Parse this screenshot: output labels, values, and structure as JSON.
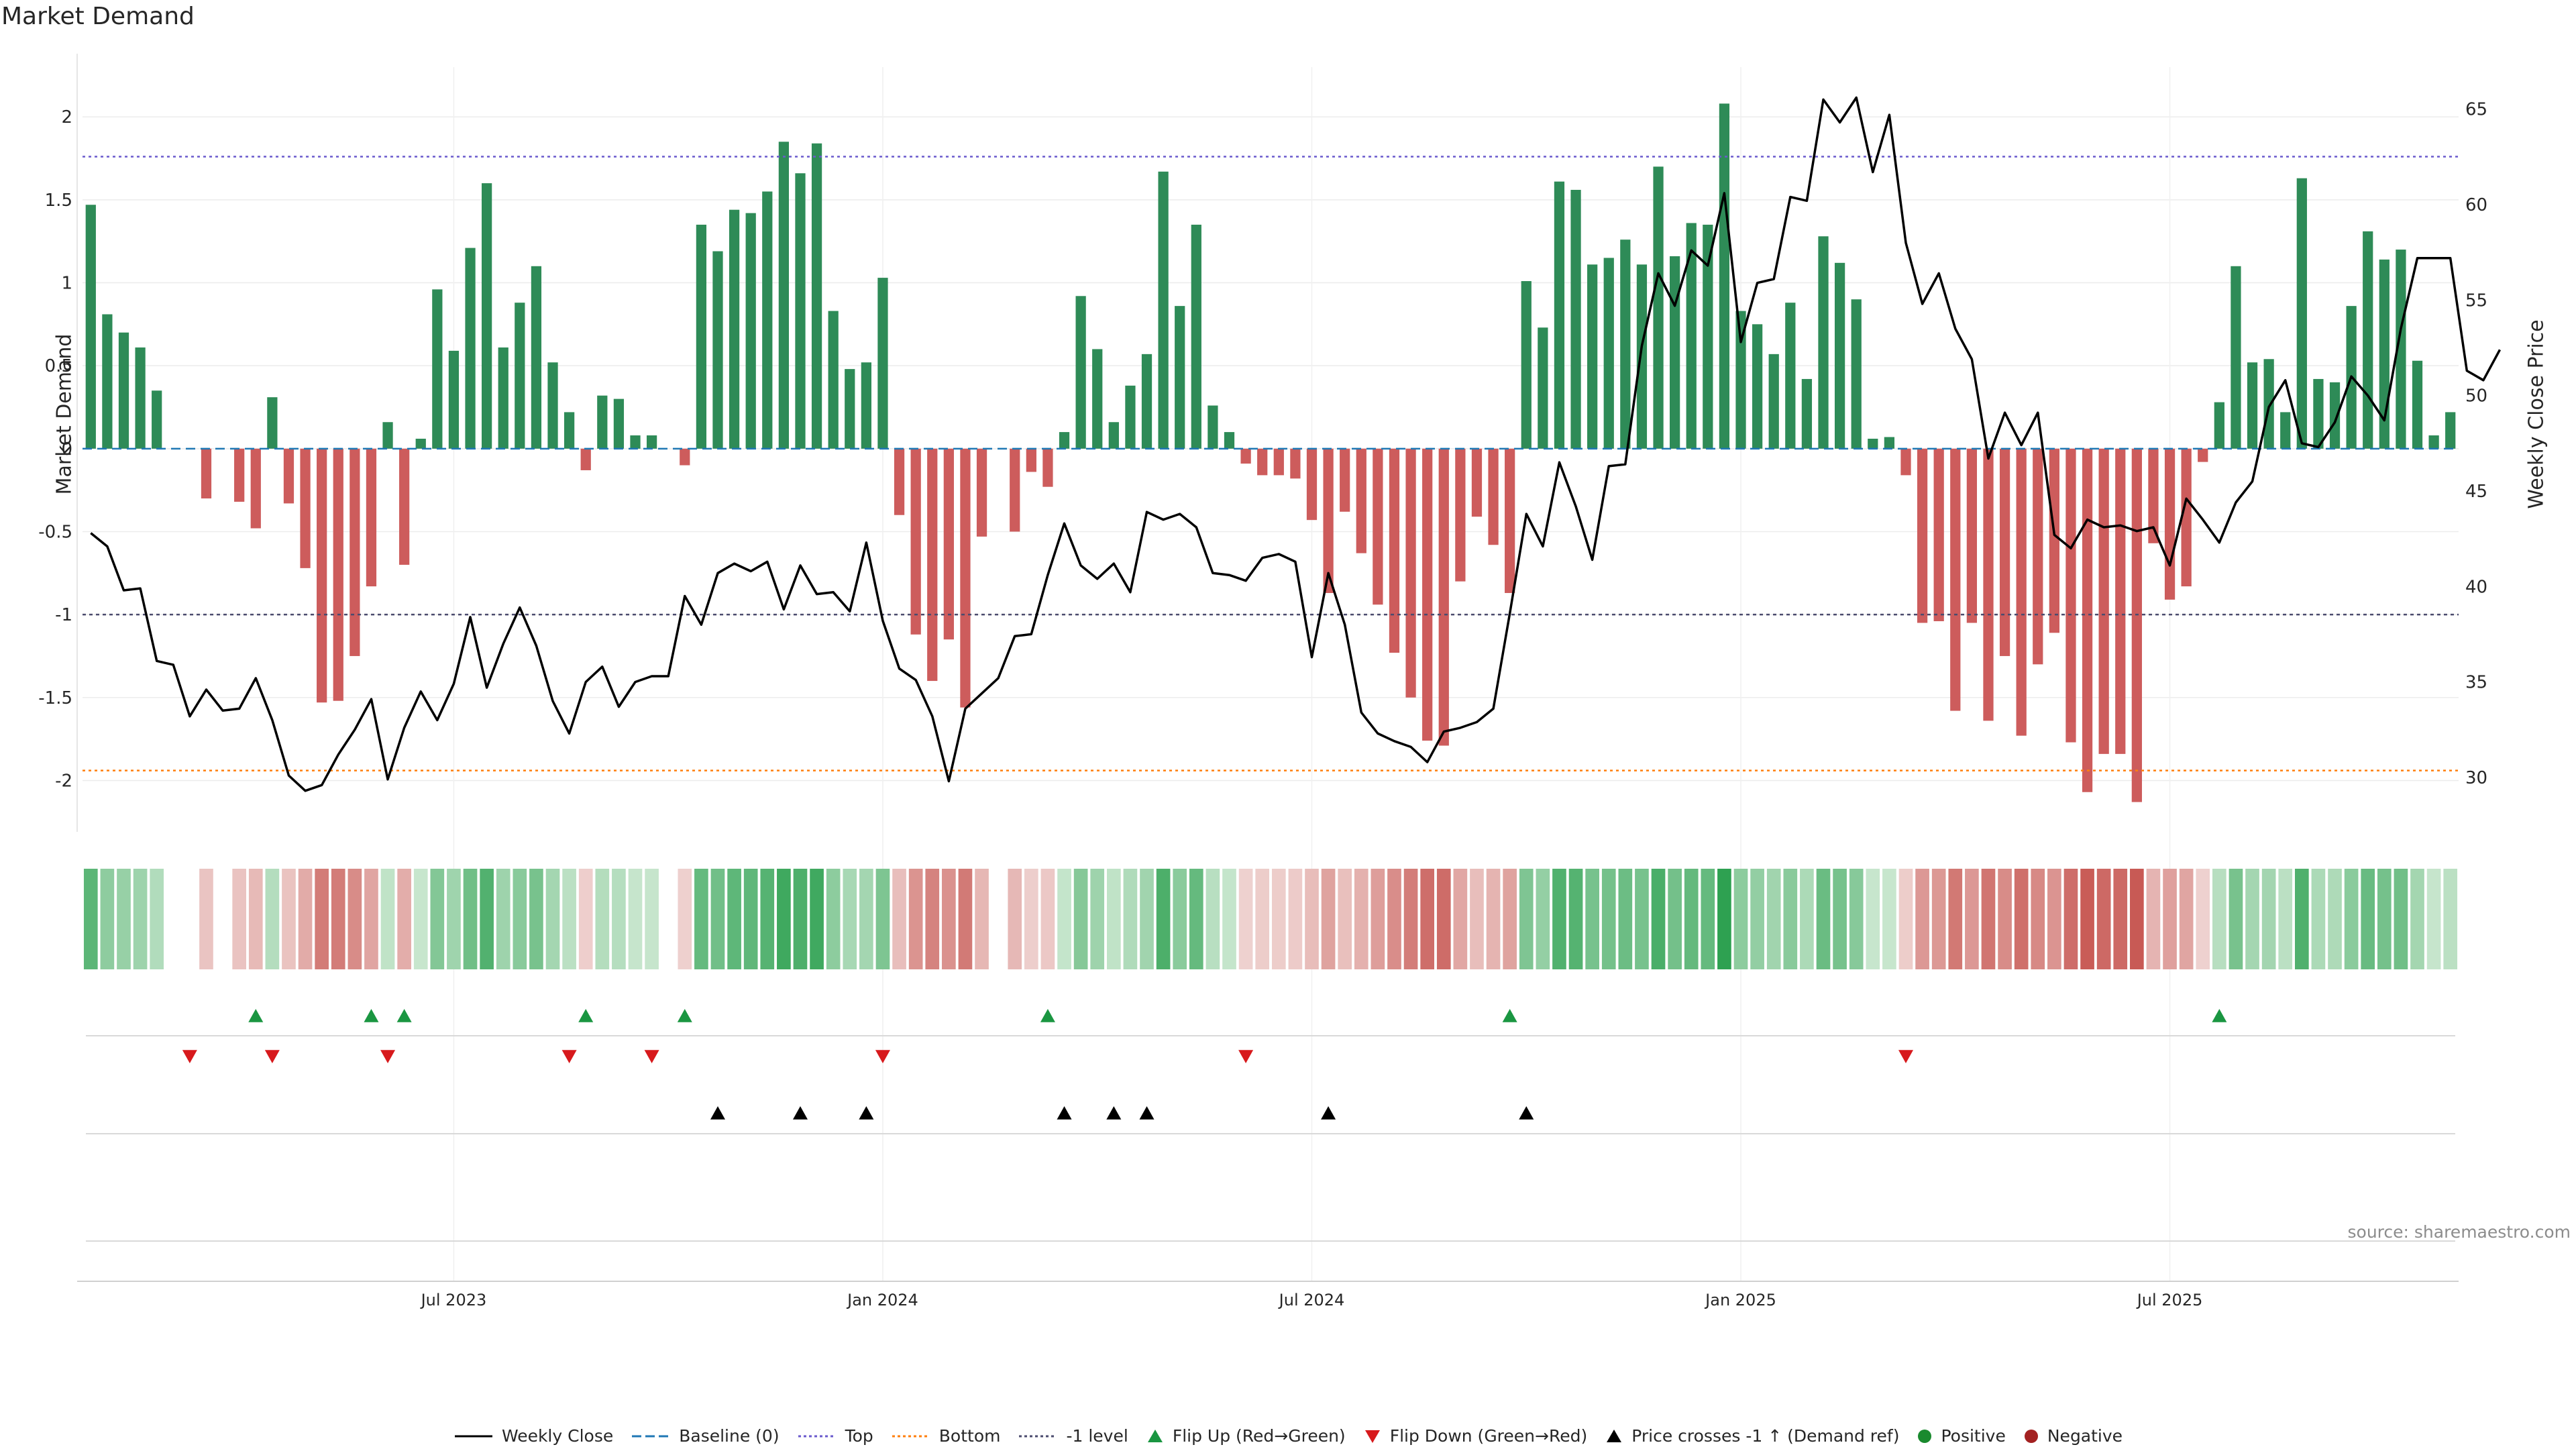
{
  "chart_data": {
    "type": "bar",
    "title": "Market Demand",
    "ylabel": "Market Demand",
    "y2label": "Weekly Close Price",
    "ylim": [
      -2.35,
      2.3
    ],
    "y2lim": [
      26.8,
      67.2
    ],
    "yticks": [
      "2",
      "1.5",
      "1",
      "0.5",
      "0",
      "-0.5",
      "-1",
      "-1.5",
      "-2"
    ],
    "yticks_values": [
      2,
      1.5,
      1,
      0.5,
      0,
      -0.5,
      -1,
      -1.5,
      -2
    ],
    "y2ticks": [
      "65",
      "60",
      "55",
      "50",
      "45",
      "40",
      "35",
      "30"
    ],
    "y2ticks_values": [
      65,
      60,
      55,
      50,
      45,
      40,
      35,
      30
    ],
    "xticks": [
      "Jul 2023",
      "Jan 2024",
      "Jul 2024",
      "Jan 2025",
      "Jul 2025"
    ],
    "xticks_week_index": [
      22,
      48,
      74,
      100,
      126
    ],
    "reference_lines": {
      "top": 1.76,
      "bottom": -1.94,
      "minus_one": -1,
      "baseline": 0
    },
    "demand": [
      1.47,
      0.81,
      0.7,
      0.61,
      0.35,
      0,
      0,
      -0.3,
      0,
      -0.32,
      -0.48,
      0.31,
      -0.33,
      -0.72,
      -1.53,
      -1.52,
      -1.25,
      -0.83,
      0.16,
      -0.7,
      0.06,
      0.96,
      0.59,
      1.21,
      1.6,
      0.61,
      0.88,
      1.1,
      0.52,
      0.22,
      -0.13,
      0.32,
      0.3,
      0.08,
      0.08,
      0,
      -0.1,
      1.35,
      1.19,
      1.44,
      1.42,
      1.55,
      1.85,
      1.66,
      1.84,
      0.83,
      0.48,
      0.52,
      1.03,
      -0.4,
      -1.12,
      -1.4,
      -1.15,
      -1.56,
      -0.53,
      0,
      -0.5,
      -0.14,
      -0.23,
      0.1,
      0.92,
      0.6,
      0.16,
      0.38,
      0.57,
      1.67,
      0.86,
      1.35,
      0.26,
      0.1,
      -0.09,
      -0.16,
      -0.16,
      -0.18,
      -0.43,
      -0.87,
      -0.38,
      -0.63,
      -0.94,
      -1.23,
      -1.5,
      -1.76,
      -1.79,
      -0.8,
      -0.41,
      -0.58,
      -0.87,
      1.01,
      0.73,
      1.61,
      1.56,
      1.11,
      1.15,
      1.26,
      1.11,
      1.7,
      1.16,
      1.36,
      1.35,
      2.08,
      0.83,
      0.75,
      0.57,
      0.88,
      0.42,
      1.28,
      1.12,
      0.9,
      0.06,
      0.07,
      -0.16,
      -1.05,
      -1.04,
      -1.58,
      -1.05,
      -1.64,
      -1.25,
      -1.73,
      -1.3,
      -1.11,
      -1.77,
      -2.07,
      -1.84,
      -1.84,
      -2.13,
      -0.57,
      -0.91,
      -0.83,
      -0.08,
      0.28,
      1.1,
      0.52,
      0.54,
      0.22,
      1.63,
      0.42,
      0.4,
      0.86,
      1.31,
      1.14,
      1.2,
      0.53,
      0.08,
      0.22
    ],
    "weekly_close": [
      42.8,
      42.1,
      39.8,
      39.9,
      36.1,
      35.9,
      33.2,
      34.6,
      33.5,
      33.6,
      35.2,
      33,
      30.1,
      29.3,
      29.6,
      31.2,
      32.5,
      34.1,
      29.9,
      32.6,
      34.5,
      33,
      34.9,
      38.4,
      34.7,
      37,
      38.9,
      36.9,
      34,
      32.3,
      35,
      35.8,
      33.7,
      35,
      35.3,
      35.3,
      39.5,
      38,
      40.7,
      41.2,
      40.8,
      41.3,
      38.8,
      41.1,
      39.6,
      39.7,
      38.7,
      42.3,
      38.2,
      35.7,
      35.1,
      33.2,
      29.8,
      33.6,
      34.4,
      35.2,
      37.4,
      37.5,
      40.6,
      43.3,
      41.1,
      40.4,
      41.2,
      39.7,
      43.9,
      43.5,
      43.8,
      43.1,
      40.7,
      40.6,
      40.3,
      41.5,
      41.7,
      41.3,
      36.3,
      40.7,
      38,
      33.4,
      32.3,
      31.9,
      31.6,
      30.8,
      32.4,
      32.6,
      32.9,
      33.6,
      38.6,
      43.8,
      42.1,
      46.5,
      44.2,
      41.4,
      46.3,
      46.4,
      52.6,
      56.4,
      54.7,
      57.6,
      56.8,
      60.6,
      52.8,
      55.9,
      56.1,
      60.4,
      60.2,
      65.5,
      64.3,
      65.6,
      61.7,
      64.7,
      58,
      54.8,
      56.4,
      53.5,
      51.9,
      46.7,
      49.1,
      47.4,
      49.1,
      42.7,
      42,
      43.5,
      43.1,
      43.2,
      42.9,
      43.1,
      41.1,
      44.6,
      43.5,
      42.3,
      44.4,
      45.5,
      49.4,
      50.8,
      47.5,
      47.3,
      48.6,
      51,
      50,
      48.7,
      53.5,
      57.2,
      57.2,
      57.2,
      51.3,
      50.8,
      52.4
    ],
    "flip_up_week_index": [
      10,
      17,
      19,
      30,
      36,
      58,
      86,
      129
    ],
    "flip_down_week_index": [
      6,
      11,
      18,
      29,
      34,
      48,
      70,
      110
    ],
    "price_cross_week_index": [
      38,
      43,
      47,
      59,
      62,
      64,
      75,
      87
    ]
  },
  "colors": {
    "positive_bar": "#2e8b57",
    "negative_bar": "#cd5c5c",
    "weekly_close": "#000000",
    "baseline": "#1f77b4",
    "top": "#6a5acd",
    "bottom": "#ff7f0e",
    "minus_one": "#4b4b6e",
    "flip_up": "#1a9641",
    "flip_down": "#d7191c",
    "price_cross": "#000000",
    "positive_dot": "#1a8a2e",
    "negative_dot": "#a32121"
  },
  "source": "source: sharemaestro.com",
  "legend": [
    {
      "label": "Weekly Close",
      "kind": "line-solid",
      "color": "#000000"
    },
    {
      "label": "Baseline (0)",
      "kind": "line-dash",
      "color": "#1f77b4"
    },
    {
      "label": "Top",
      "kind": "line-dot",
      "color": "#6a5acd"
    },
    {
      "label": "Bottom",
      "kind": "line-dot",
      "color": "#ff7f0e"
    },
    {
      "label": "-1 level",
      "kind": "line-dot",
      "color": "#4b4b6e"
    },
    {
      "label": "Flip Up (Red→Green)",
      "kind": "triangle-up",
      "color": "#1a9641"
    },
    {
      "label": "Flip Down (Green→Red)",
      "kind": "triangle-down",
      "color": "#d7191c"
    },
    {
      "label": "Price crosses -1 ↑ (Demand ref)",
      "kind": "triangle-up",
      "color": "#000000"
    },
    {
      "label": "Positive",
      "kind": "dot",
      "color": "#1a8a2e"
    },
    {
      "label": "Negative",
      "kind": "dot",
      "color": "#a32121"
    }
  ]
}
